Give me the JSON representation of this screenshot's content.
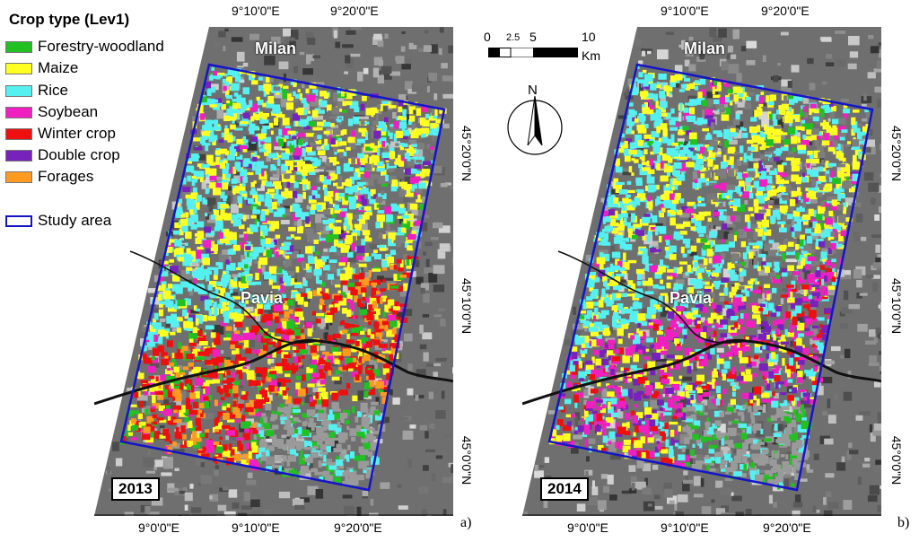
{
  "legend": {
    "title": "Crop type (Lev1)",
    "items": [
      {
        "label": "Forestry-woodland",
        "color": "#22c022"
      },
      {
        "label": "Maize",
        "color": "#ffff22"
      },
      {
        "label": "Rice",
        "color": "#55f0f0"
      },
      {
        "label": "Soybean",
        "color": "#f020c0"
      },
      {
        "label": "Winter crop",
        "color": "#ee1010"
      },
      {
        "label": "Double crop",
        "color": "#7722bb"
      },
      {
        "label": "Forages",
        "color": "#ff9a20"
      }
    ],
    "study_area": {
      "label": "Study area",
      "color": "#1515c8"
    }
  },
  "coordinates": {
    "top": [
      "9°10'0\"E",
      "9°20'0\"E"
    ],
    "bottom": [
      "9°0'0\"E",
      "9°10'0\"E",
      "9°20'0\"E"
    ],
    "right": [
      "45°20'0\"N",
      "45°10'0\"N",
      "45°0'0\"N"
    ]
  },
  "maps": [
    {
      "year": "2013",
      "panel": "a)",
      "cities": [
        "Milan",
        "Pavia"
      ]
    },
    {
      "year": "2014",
      "panel": "b)",
      "cities": [
        "Milan",
        "Pavia"
      ]
    }
  ],
  "scale_bar": {
    "ticks": [
      "0",
      "2.5",
      "5",
      "10"
    ],
    "unit": "Km"
  },
  "north_arrow": {
    "label": "N"
  }
}
